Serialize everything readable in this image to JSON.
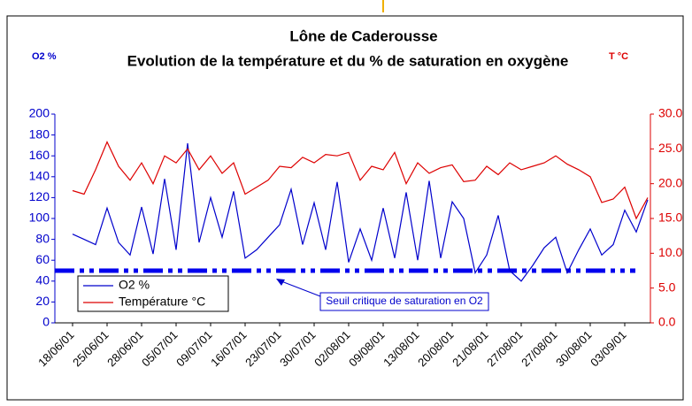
{
  "chart_data": {
    "type": "line",
    "title": "Lône de Caderousse",
    "subtitle": "Evolution de la température et du % de saturation en oxygène",
    "y_label": "O2 %",
    "y2_label": "T °C",
    "categories": [
      "18/06/01",
      null,
      null,
      "25/06/01",
      null,
      null,
      "28/06/01",
      null,
      null,
      "05/07/01",
      null,
      null,
      "09/07/01",
      null,
      null,
      "16/07/01",
      null,
      null,
      "23/07/01",
      null,
      null,
      "30/07/01",
      null,
      null,
      "02/08/01",
      null,
      null,
      "09/08/01",
      null,
      null,
      "13/08/01",
      null,
      null,
      "20/08/01",
      null,
      null,
      "21/08/01",
      null,
      null,
      "27/08/01",
      null,
      null,
      "27/08/01",
      null,
      null,
      "30/08/01",
      null,
      null,
      "03/09/01",
      null,
      null
    ],
    "series": [
      {
        "name": "O2 %",
        "color": "#0000cc",
        "values": [
          85,
          80,
          75,
          110,
          77,
          65,
          111,
          66,
          138,
          70,
          172,
          77,
          120,
          82,
          126,
          62,
          70,
          82,
          94,
          128,
          75,
          115,
          70,
          135,
          58,
          90,
          60,
          110,
          62,
          125,
          60,
          136,
          62,
          116,
          100,
          48,
          65,
          103,
          50,
          40,
          55,
          72,
          82,
          48,
          70,
          90,
          65,
          75,
          108,
          87,
          118
        ]
      },
      {
        "name": "Température °C",
        "color": "#dd0000",
        "axis": "y2",
        "values": [
          19,
          18.5,
          22,
          26,
          22.5,
          20.5,
          23,
          20,
          24,
          23,
          25,
          22,
          24,
          21.5,
          23,
          18.5,
          19.5,
          20.5,
          22.5,
          22.3,
          23.8,
          23,
          24.2,
          24,
          24.5,
          20.5,
          22.5,
          22,
          24.5,
          20,
          23,
          21.5,
          22.3,
          22.7,
          20.3,
          20.5,
          22.5,
          21.3,
          23,
          22,
          22.5,
          23,
          24,
          22.8,
          22,
          21,
          17.3,
          17.8,
          19.5,
          15,
          18
        ]
      }
    ],
    "threshold": {
      "value": 50,
      "color": "#0000ee",
      "label": "Seuil critique de saturation en O2"
    },
    "ylim": [
      0,
      200
    ],
    "yticks": [
      0,
      20,
      40,
      60,
      80,
      100,
      120,
      140,
      160,
      180,
      200
    ],
    "y2lim": [
      0,
      30
    ],
    "y2ticks": [
      {
        "value": 0,
        "label": "0.0"
      },
      {
        "value": 5,
        "label": "5.0"
      },
      {
        "value": 10,
        "label": "10.0"
      },
      {
        "value": 15,
        "label": "15.0"
      },
      {
        "value": 20,
        "label": "20.0"
      },
      {
        "value": 25,
        "label": "25.0"
      },
      {
        "value": 30,
        "label": "30.0"
      }
    ],
    "legend": "lower left"
  }
}
